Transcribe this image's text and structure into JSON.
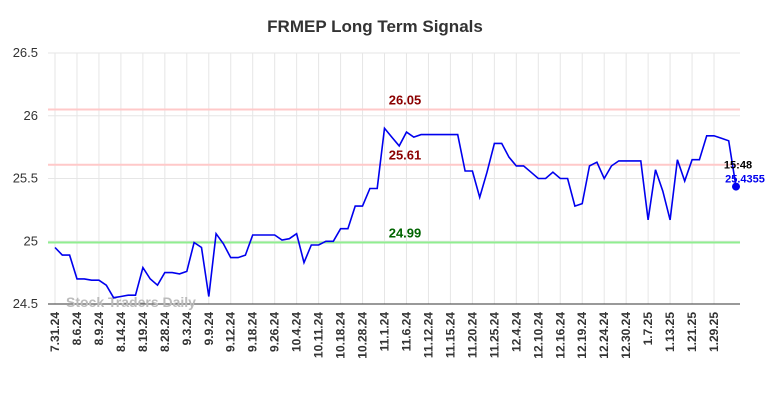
{
  "chart_data": {
    "type": "line",
    "title": "FRMEP Long Term Signals",
    "watermark": "Stock Traders Daily",
    "categories": [
      "7.31.24",
      null,
      null,
      "8.6.24",
      null,
      null,
      "8.9.24",
      null,
      null,
      "8.14.24",
      null,
      null,
      "8.19.24",
      null,
      null,
      "8.28.24",
      null,
      null,
      "9.3.24",
      null,
      null,
      "9.9.24",
      null,
      null,
      "9.12.24",
      null,
      null,
      "9.18.24",
      null,
      null,
      "9.26.24",
      null,
      null,
      "10.4.24",
      null,
      null,
      "10.11.24",
      null,
      null,
      "10.18.24",
      null,
      null,
      "10.28.24",
      null,
      null,
      "11.1.24",
      null,
      null,
      "11.6.24",
      null,
      null,
      "11.12.24",
      null,
      null,
      "11.15.24",
      null,
      null,
      "11.20.24",
      null,
      null,
      "11.25.24",
      null,
      null,
      "12.4.24",
      null,
      null,
      "12.10.24",
      null,
      null,
      "12.16.24",
      null,
      null,
      "12.19.24",
      null,
      null,
      "12.24.24",
      null,
      null,
      "12.30.24",
      null,
      null,
      "1.7.25",
      null,
      null,
      "1.13.25",
      null,
      null,
      "1.21.25",
      null,
      null,
      "1.29.25",
      null,
      null,
      null
    ],
    "values": [
      24.95,
      24.89,
      24.89,
      24.7,
      24.7,
      24.69,
      24.69,
      24.65,
      24.55,
      24.56,
      24.57,
      24.57,
      24.79,
      24.7,
      24.65,
      24.75,
      24.75,
      24.74,
      24.76,
      24.99,
      24.95,
      24.56,
      25.06,
      24.98,
      24.87,
      24.87,
      24.89,
      25.05,
      25.05,
      25.05,
      25.05,
      25.01,
      25.02,
      25.06,
      24.83,
      24.97,
      24.97,
      25.0,
      25.0,
      25.1,
      25.1,
      25.28,
      25.28,
      25.42,
      25.42,
      25.9,
      25.83,
      25.76,
      25.87,
      25.83,
      25.85,
      25.85,
      25.85,
      25.85,
      25.85,
      25.85,
      25.56,
      25.56,
      25.35,
      25.55,
      25.78,
      25.78,
      25.67,
      25.6,
      25.6,
      25.55,
      25.5,
      25.5,
      25.55,
      25.5,
      25.5,
      25.28,
      25.3,
      25.6,
      25.63,
      25.5,
      25.6,
      25.64,
      25.64,
      25.64,
      25.64,
      25.17,
      25.57,
      25.4,
      25.17,
      25.65,
      25.48,
      25.65,
      25.65,
      25.84,
      25.84,
      25.82,
      25.8,
      25.4355
    ],
    "color": "#0000ee",
    "ylim": [
      24.5,
      26.5
    ],
    "yticks": [
      24.5,
      25,
      25.5,
      26,
      26.5
    ],
    "grid": true,
    "hlines": [
      {
        "value": 26.05,
        "color": "#ffc9c9",
        "label_color": "#8b0000"
      },
      {
        "value": 25.61,
        "color": "#ffc9c9",
        "label_color": "#8b0000"
      },
      {
        "value": 24.99,
        "color": "#90ee90",
        "label_color": "#006400"
      }
    ],
    "last_time": "15:48",
    "last_value": 25.4355
  }
}
